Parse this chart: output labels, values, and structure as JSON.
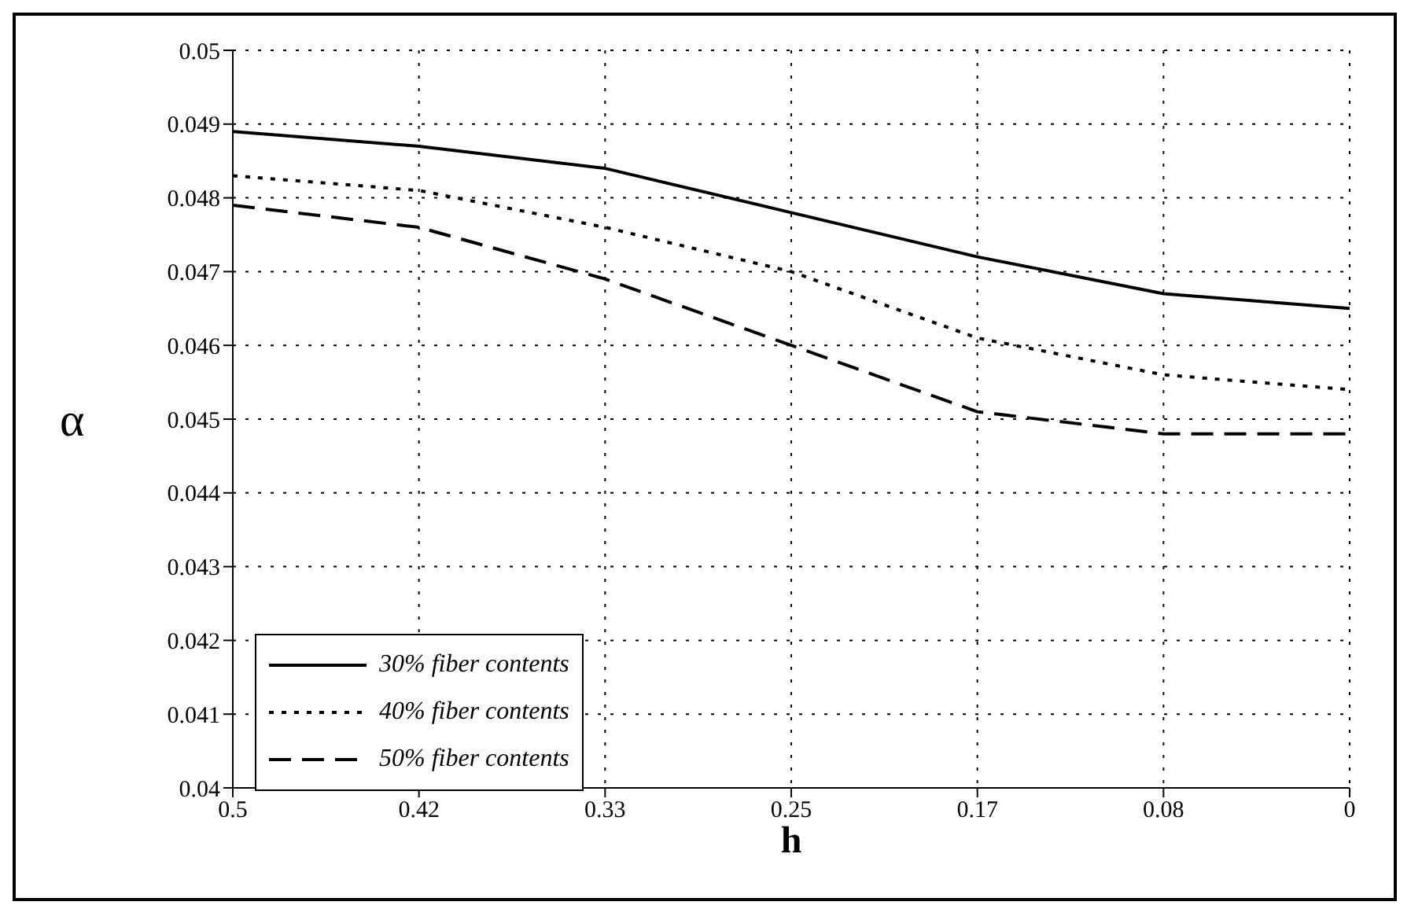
{
  "chart_data": {
    "type": "line",
    "xlabel": "h",
    "ylabel": "α",
    "categories": [
      "0.5",
      "0.42",
      "0.33",
      "0.25",
      "0.17",
      "0.08",
      "0"
    ],
    "series": [
      {
        "name": "30% fiber contents",
        "color": "#000000",
        "line_style": "solid",
        "values": [
          0.0489,
          0.0487,
          0.0484,
          0.0478,
          0.0472,
          0.0467,
          0.0465
        ]
      },
      {
        "name": "40% fiber contents",
        "color": "#000000",
        "line_style": "dotted",
        "values": [
          0.0483,
          0.0481,
          0.0476,
          0.047,
          0.0461,
          0.0456,
          0.0454
        ]
      },
      {
        "name": "50% fiber contents",
        "color": "#000000",
        "line_style": "dashed",
        "values": [
          0.0479,
          0.0476,
          0.0469,
          0.046,
          0.0451,
          0.0448,
          0.0448
        ]
      }
    ],
    "ylim": [
      0.04,
      0.05
    ],
    "yticks": [
      0.04,
      0.041,
      0.042,
      0.043,
      0.044,
      0.045,
      0.046,
      0.047,
      0.048,
      0.049,
      0.05
    ],
    "grid": true,
    "legend": "bottom left",
    "marker": "none"
  }
}
